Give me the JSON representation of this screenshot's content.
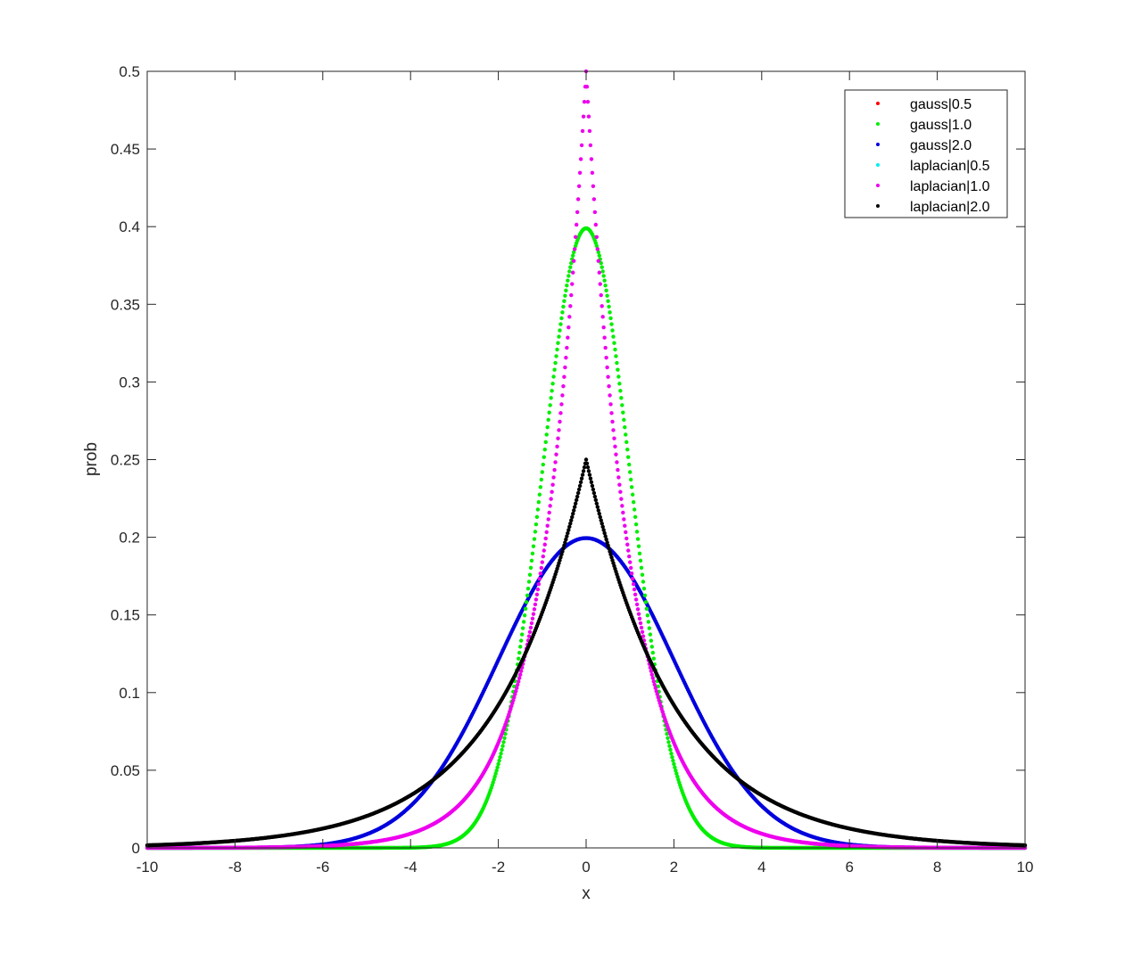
{
  "chart_data": {
    "type": "scatter",
    "title": "",
    "xlabel": "x",
    "ylabel": "prob",
    "xlim": [
      -10,
      10
    ],
    "ylim": [
      0,
      0.5
    ],
    "xticks": [
      -10,
      -8,
      -6,
      -4,
      -2,
      0,
      2,
      4,
      6,
      8,
      10
    ],
    "xtick_labels": [
      "-10",
      "-8",
      "-6",
      "-4",
      "-2",
      "0",
      "2",
      "4",
      "6",
      "8",
      "10"
    ],
    "yticks": [
      0,
      0.05,
      0.1,
      0.15,
      0.2,
      0.25,
      0.3,
      0.35,
      0.4,
      0.45,
      0.5
    ],
    "ytick_labels": [
      "0",
      "0.05",
      "0.1",
      "0.15",
      "0.2",
      "0.25",
      "0.3",
      "0.35",
      "0.4",
      "0.45",
      "0.5"
    ],
    "grid": false,
    "legend_position": "northeast",
    "series": [
      {
        "name": "gauss|0.5",
        "color": "#ff0000",
        "dist": "gauss",
        "param": 0.5,
        "visible": false
      },
      {
        "name": "gauss|1.0",
        "color": "#00ee00",
        "dist": "gauss",
        "param": 1.0,
        "visible": true,
        "peak": 0.399
      },
      {
        "name": "gauss|2.0",
        "color": "#0000dd",
        "dist": "gauss",
        "param": 2.0,
        "visible": true,
        "peak": 0.1995
      },
      {
        "name": "laplacian|0.5",
        "color": "#00eeee",
        "dist": "laplacian",
        "param": 0.5,
        "visible": false
      },
      {
        "name": "laplacian|1.0",
        "color": "#ee00ee",
        "dist": "laplacian",
        "param": 1.0,
        "visible": true,
        "peak": 0.5
      },
      {
        "name": "laplacian|2.0",
        "color": "#000000",
        "dist": "laplacian",
        "param": 2.0,
        "visible": true,
        "peak": 0.25
      }
    ],
    "x_samples": {
      "start": -10,
      "end": 10,
      "step": 0.02
    }
  }
}
